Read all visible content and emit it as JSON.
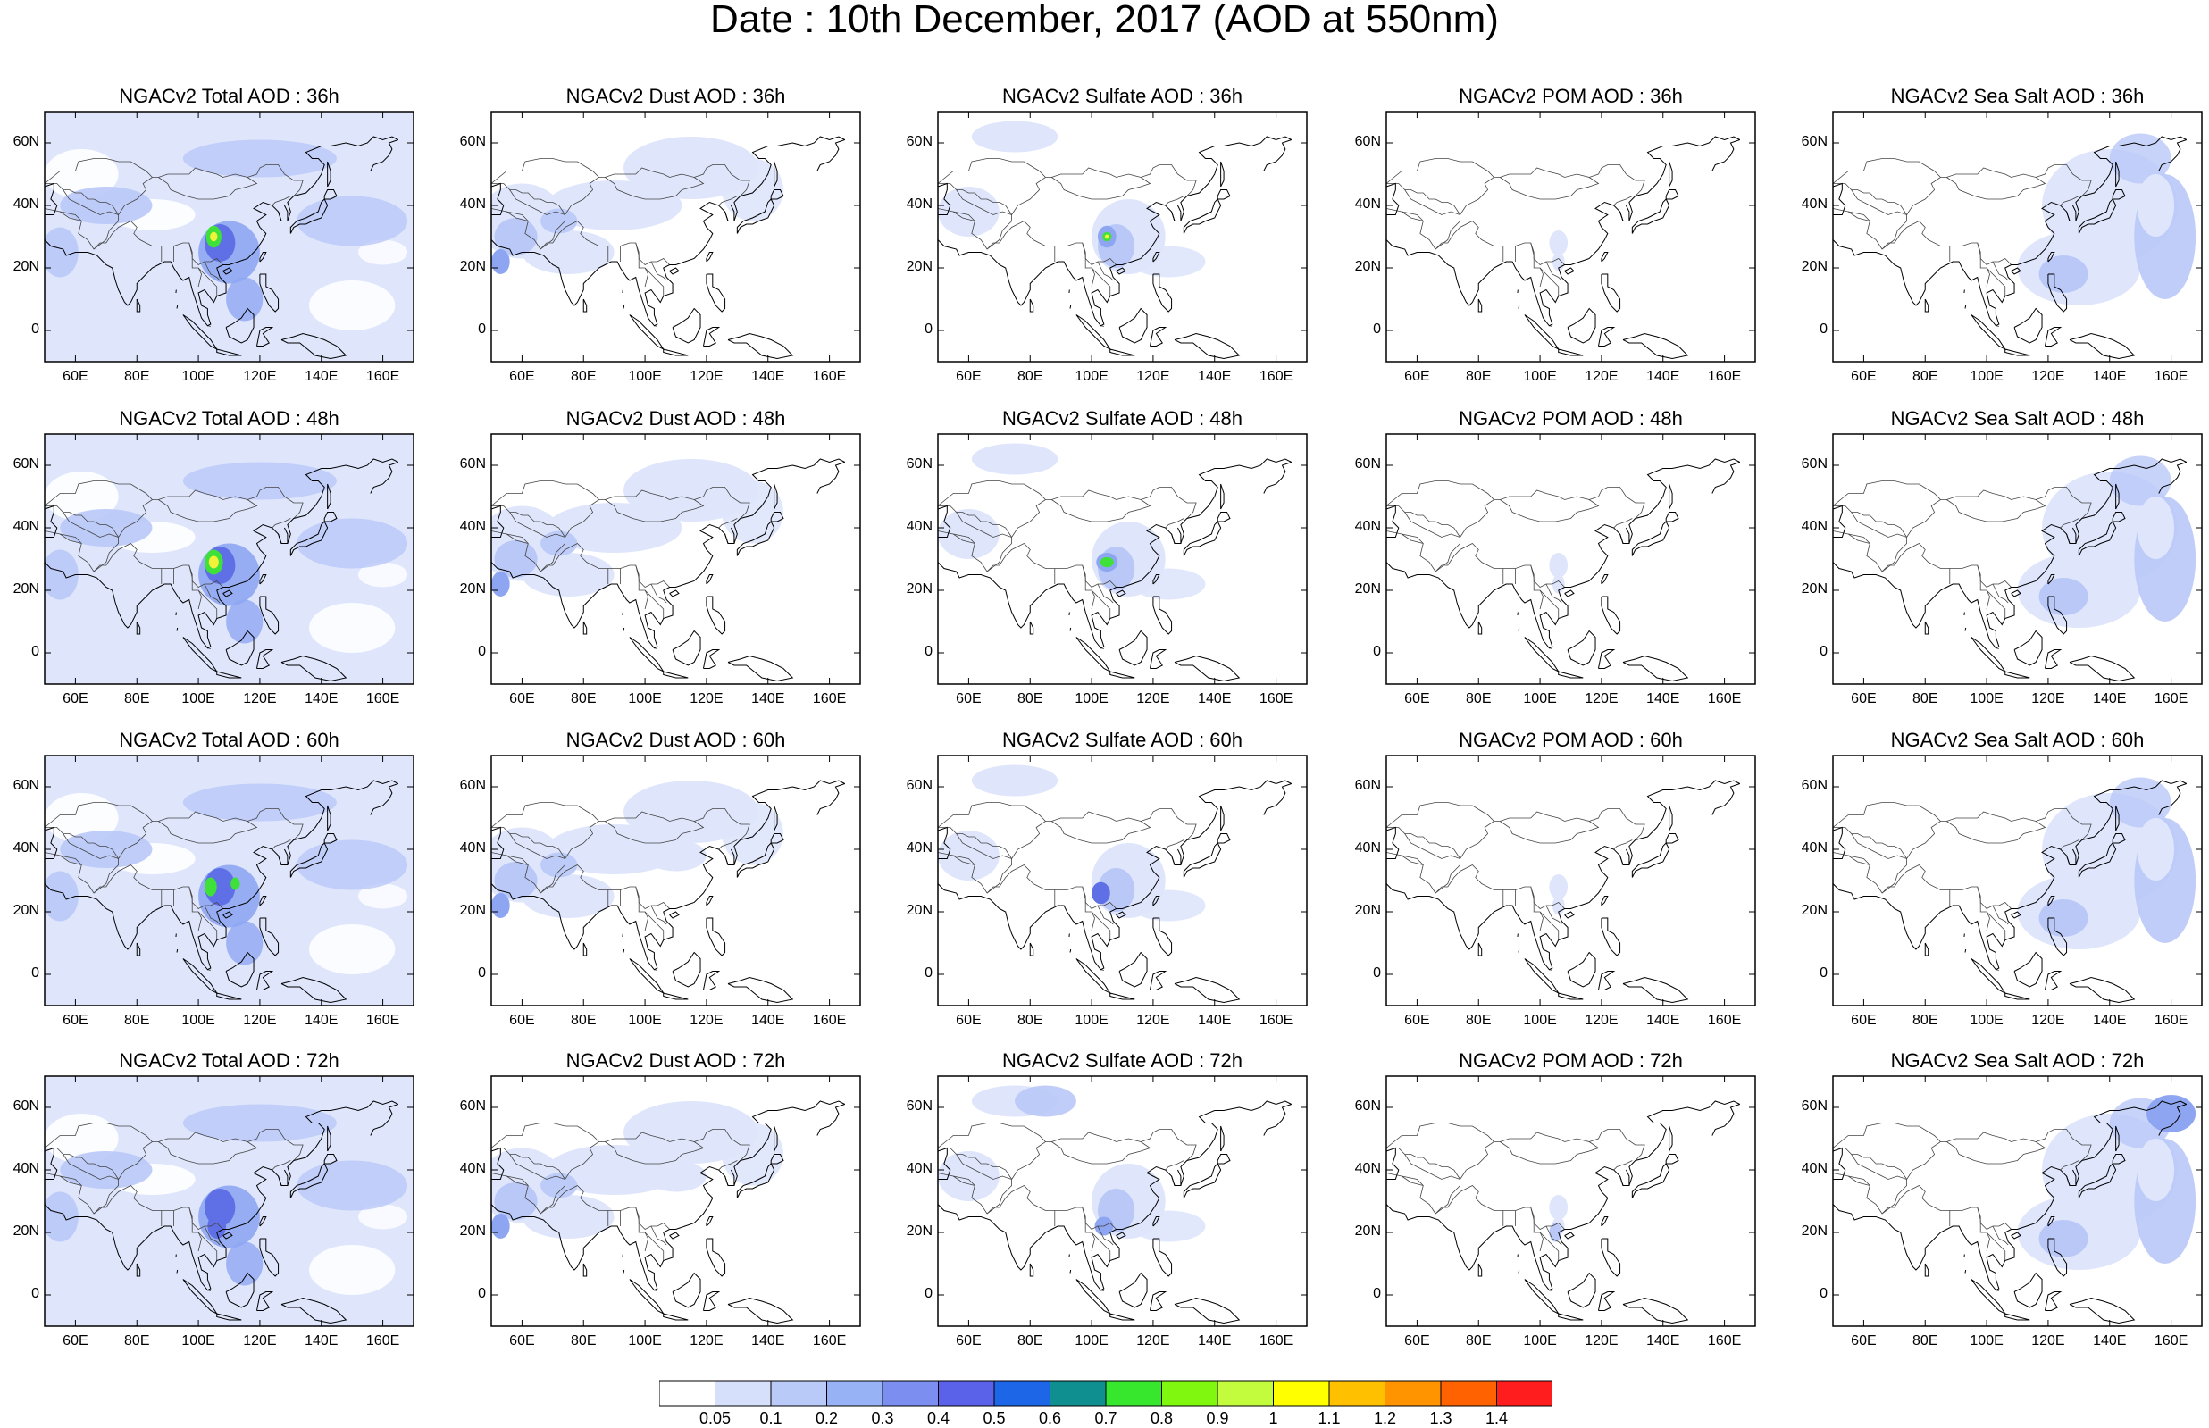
{
  "title": "Date : 10th December, 2017 (AOD at 550nm)",
  "panels": [
    [
      "NGACv2 Total AOD : 36h",
      "NGACv2 Dust AOD : 36h",
      "NGACv2 Sulfate AOD : 36h",
      "NGACv2 POM AOD : 36h",
      "NGACv2 Sea Salt AOD : 36h"
    ],
    [
      "NGACv2 Total AOD : 48h",
      "NGACv2 Dust AOD : 48h",
      "NGACv2 Sulfate AOD : 48h",
      "NGACv2 POM AOD : 48h",
      "NGACv2 Sea Salt AOD : 48h"
    ],
    [
      "NGACv2 Total AOD : 60h",
      "NGACv2 Dust AOD : 60h",
      "NGACv2 Sulfate AOD : 60h",
      "NGACv2 POM AOD : 60h",
      "NGACv2 Sea Salt AOD : 60h"
    ],
    [
      "NGACv2 Total AOD : 72h",
      "NGACv2 Dust AOD : 72h",
      "NGACv2 Sulfate AOD : 72h",
      "NGACv2 POM AOD : 72h",
      "NGACv2 Sea Salt  AOD : 72h"
    ]
  ],
  "lat_ticks": [
    "60N",
    "40N",
    "20N",
    "0"
  ],
  "lon_ticks": [
    "60E",
    "80E",
    "100E",
    "120E",
    "140E",
    "160E"
  ],
  "colorbar": {
    "labels": [
      "0.05",
      "0.1",
      "0.2",
      "0.3",
      "0.4",
      "0.5",
      "0.6",
      "0.7",
      "0.8",
      "0.9",
      "1",
      "1.1",
      "1.2",
      "1.3",
      "1.4"
    ],
    "colors": [
      "#ffffff",
      "#d7e0fb",
      "#b9c9f8",
      "#98b3f5",
      "#7c8ff0",
      "#5b62ea",
      "#1e66e8",
      "#0f8f8f",
      "#36e72e",
      "#7ff70f",
      "#c2fc3c",
      "#ffff00",
      "#ffc000",
      "#ff9400",
      "#ff6200",
      "#ff1d1d"
    ]
  },
  "map_palette": {
    "light": "#dfe6fc",
    "mid": "#b9c8f7",
    "strong": "#8ea6f2",
    "deep": "#5f6fe6",
    "green": "#3fe03a",
    "yellow": "#f2f23a"
  }
}
